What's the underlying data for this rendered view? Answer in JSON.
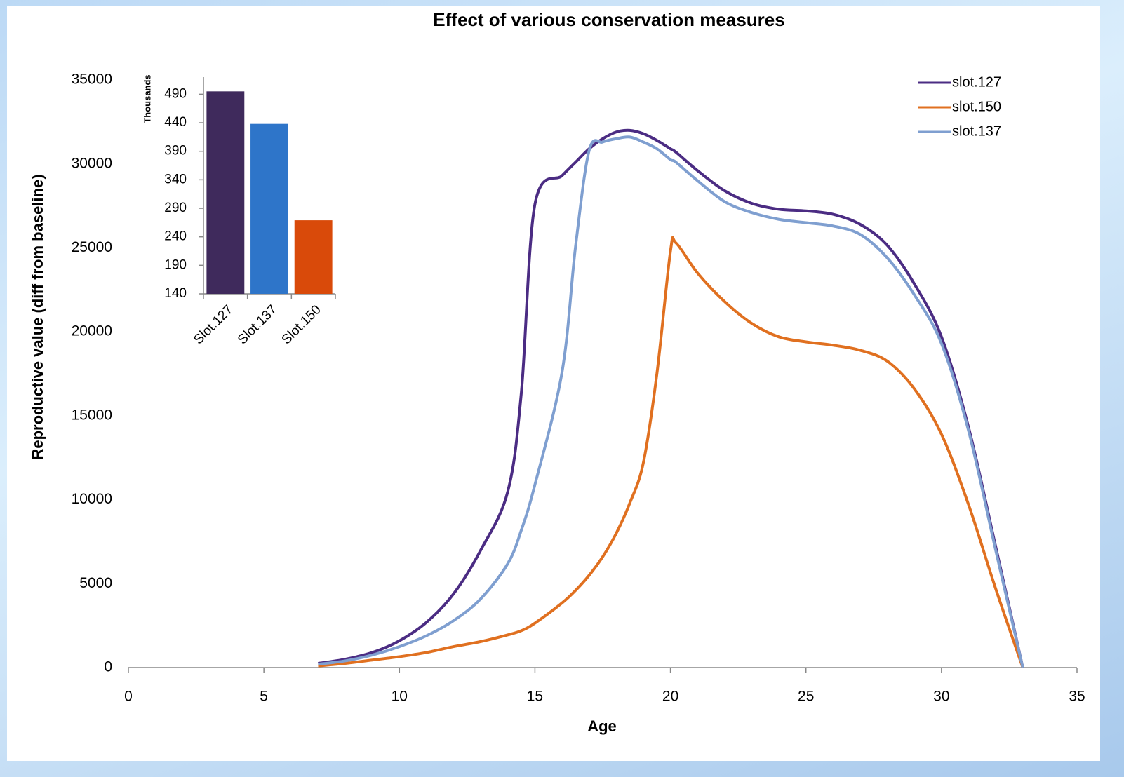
{
  "chart_data": [
    {
      "type": "line",
      "title": "Effect of various conservation measures",
      "x_label": "Age",
      "y_label": "Reproductive value (diff from baseline)",
      "x": [
        7,
        8,
        9,
        10,
        11,
        12,
        13,
        14,
        14.5,
        15,
        16,
        16.5,
        17,
        17.5,
        18,
        18.5,
        19,
        19.5,
        20,
        20.2,
        21,
        22,
        23,
        24,
        25,
        26,
        27,
        28,
        29,
        30,
        31,
        32,
        33
      ],
      "series": [
        {
          "name": "slot.127",
          "color": "#4b2c83",
          "values": [
            250,
            500,
            900,
            1600,
            2700,
            4400,
            7000,
            10500,
            16400,
            27600,
            29300,
            30100,
            30900,
            31500,
            31900,
            32000,
            31800,
            31400,
            30900,
            30700,
            29600,
            28400,
            27650,
            27300,
            27200,
            27000,
            26400,
            25150,
            22850,
            19700,
            14300,
            7200,
            0
          ]
        },
        {
          "name": "slot.150",
          "color": "#e07020",
          "values": [
            100,
            250,
            450,
            650,
            900,
            1250,
            1550,
            1950,
            2200,
            2650,
            3850,
            4600,
            5500,
            6600,
            8000,
            9800,
            12200,
            17500,
            24800,
            25300,
            23500,
            21800,
            20500,
            19700,
            19400,
            19200,
            18900,
            18250,
            16600,
            13900,
            9700,
            4700,
            0
          ]
        },
        {
          "name": "slot.137",
          "color": "#7f9fd0",
          "values": [
            200,
            400,
            750,
            1250,
            1900,
            2800,
            4100,
            6200,
            8200,
            10900,
            17600,
            25100,
            30800,
            31300,
            31500,
            31600,
            31300,
            30900,
            30250,
            30100,
            29000,
            27750,
            27100,
            26700,
            26500,
            26300,
            25800,
            24400,
            22200,
            19300,
            14100,
            7000,
            0
          ]
        }
      ],
      "xlim": [
        0,
        35
      ],
      "xticks": [
        0,
        5,
        10,
        15,
        20,
        25,
        30,
        35
      ],
      "ylim": [
        0,
        35000
      ],
      "yticks": [
        0,
        5000,
        10000,
        15000,
        20000,
        25000,
        30000,
        35000
      ],
      "legend": "upper right"
    },
    {
      "type": "bar",
      "y_label": "Thousands",
      "categories": [
        "Slot.127",
        "Slot.137",
        "Slot.150"
      ],
      "values": [
        495,
        438,
        269
      ],
      "colors": [
        "#3f2a5c",
        "#2e75c9",
        "#d94a0a"
      ],
      "ylim": [
        140,
        520
      ],
      "yticks": [
        140,
        190,
        240,
        290,
        340,
        390,
        440,
        490
      ]
    }
  ]
}
